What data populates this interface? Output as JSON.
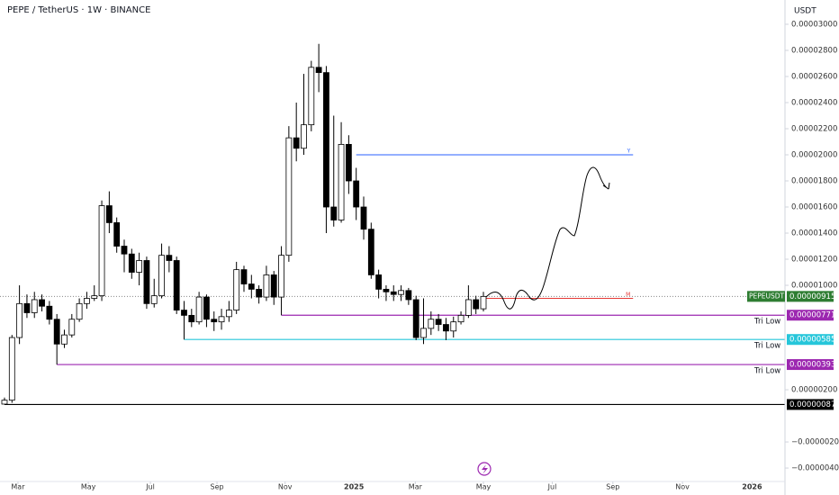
{
  "chart_data": {
    "type": "candlestick",
    "title": "PEPE / TetherUS · 1W · BINANCE",
    "currency": "USDT",
    "up_color": "#ffffff",
    "down_color": "#000000",
    "open": [
      9e-07,
      1.2e-06,
      6e-06,
      8.6e-06,
      7.9e-06,
      8.9e-06,
      8.4e-06,
      7.4e-06,
      5.5e-06,
      6.2e-06,
      7.4e-06,
      8.6e-06,
      9e-06,
      9.2e-06,
      1.61e-05,
      1.48e-05,
      1.3e-05,
      1.24e-05,
      1.1e-05,
      1.19e-05,
      8.6e-06,
      9.2e-06,
      1.23e-05,
      1.19e-05,
      8.1e-06,
      7.7e-06,
      7.2e-06,
      9.1e-06,
      7.4e-06,
      7.2e-06,
      7.6e-06,
      8.1e-06,
      1.12e-05,
      1.01e-05,
      9.7e-06,
      9.1e-06,
      1.08e-05,
      9.1e-06,
      1.23e-05,
      2.13e-05,
      2.05e-05,
      2.23e-05,
      2.67e-05,
      2.63e-05,
      1.6e-05,
      1.5e-05,
      2.08e-05,
      1.8e-05,
      1.6e-05,
      1.43e-05,
      1.08e-05,
      9.7e-06,
      9.5e-06,
      9.3e-06,
      9.6e-06,
      8.9e-06,
      6e-06,
      6.7e-06,
      7.4e-06,
      7e-06,
      6.5e-06,
      7.2e-06,
      7.7e-06,
      8.9e-06,
      8.2e-06
    ],
    "high": [
      1.4e-06,
      6.2e-06,
      1e-05,
      9.3e-06,
      9.5e-06,
      9.3e-06,
      8.8e-06,
      7.8e-06,
      6.6e-06,
      7.8e-06,
      9e-06,
      9.5e-06,
      1e-05,
      1.65e-05,
      1.72e-05,
      1.52e-05,
      1.35e-05,
      1.28e-05,
      1.25e-05,
      1.22e-05,
      1.05e-05,
      1.32e-05,
      1.3e-05,
      1.22e-05,
      8.8e-06,
      8.2e-06,
      9.5e-06,
      9.3e-06,
      8e-06,
      8.2e-06,
      8.8e-06,
      1.18e-05,
      1.15e-05,
      1.08e-05,
      1e-05,
      1.15e-05,
      1.11e-05,
      1.3e-05,
      2.22e-05,
      2.4e-05,
      2.62e-05,
      2.72e-05,
      2.85e-05,
      2.68e-05,
      2.3e-05,
      2.25e-05,
      2.15e-05,
      1.9e-05,
      1.68e-05,
      1.48e-05,
      1.12e-05,
      1e-05,
      1e-05,
      1e-05,
      9.8e-06,
      9.2e-06,
      9e-06,
      8e-06,
      7.8e-06,
      7.5e-06,
      7.6e-06,
      8e-06,
      1e-05,
      9.2e-06,
      9.5e-06
    ],
    "low": [
      8.7e-07,
      1e-06,
      5.5e-06,
      7.5e-06,
      7.5e-06,
      8e-06,
      7e-06,
      3.93e-06,
      5.2e-06,
      6e-06,
      7.2e-06,
      8.2e-06,
      8.8e-06,
      8.8e-06,
      1.4e-05,
      1.25e-05,
      1.1e-05,
      1.05e-05,
      1e-05,
      8.2e-06,
      8.3e-06,
      9e-06,
      1.1e-05,
      7.8e-06,
      5.85e-06,
      6.8e-06,
      7e-06,
      6.8e-06,
      6.5e-06,
      6.6e-06,
      7.2e-06,
      7.8e-06,
      9.5e-06,
      9e-06,
      8.6e-06,
      8.8e-06,
      8.5e-06,
      7.71e-06,
      1.18e-05,
      1.95e-05,
      2e-05,
      2.18e-05,
      2.48e-05,
      1.4e-05,
      1.45e-05,
      1.48e-05,
      1.7e-05,
      1.5e-05,
      1.35e-05,
      1.05e-05,
      9e-06,
      8.8e-06,
      8.8e-06,
      8.8e-06,
      8.5e-06,
      5.8e-06,
      5.5e-06,
      6.2e-06,
      6.5e-06,
      5.8e-06,
      6e-06,
      7e-06,
      7.5e-06,
      7.8e-06,
      8e-06
    ],
    "close": [
      1.2e-06,
      6e-06,
      8.6e-06,
      7.9e-06,
      8.9e-06,
      8.4e-06,
      7.4e-06,
      5.5e-06,
      6.2e-06,
      7.4e-06,
      8.6e-06,
      9e-06,
      9.2e-06,
      1.61e-05,
      1.48e-05,
      1.3e-05,
      1.24e-05,
      1.1e-05,
      1.19e-05,
      8.6e-06,
      9.2e-06,
      1.23e-05,
      1.19e-05,
      8.1e-06,
      7.7e-06,
      7.2e-06,
      9.1e-06,
      7.4e-06,
      7.2e-06,
      7.6e-06,
      8.1e-06,
      1.12e-05,
      1.01e-05,
      9.7e-06,
      9.1e-06,
      1.08e-05,
      9.1e-06,
      1.23e-05,
      2.13e-05,
      2.05e-05,
      2.23e-05,
      2.67e-05,
      2.63e-05,
      1.6e-05,
      1.5e-05,
      2.08e-05,
      1.8e-05,
      1.6e-05,
      1.43e-05,
      1.08e-05,
      9.7e-06,
      9.5e-06,
      9.3e-06,
      9.6e-06,
      8.9e-06,
      6e-06,
      6.7e-06,
      7.4e-06,
      7e-06,
      6.5e-06,
      7.2e-06,
      7.7e-06,
      8.9e-06,
      8.2e-06,
      9.15e-06
    ],
    "xlim": [
      -0.6,
      104.3
    ],
    "xticks": [
      {
        "value": 1.8,
        "label": "Mar"
      },
      {
        "value": 11.2,
        "label": "May"
      },
      {
        "value": 19.5,
        "label": "Jul"
      },
      {
        "value": 28.4,
        "label": "Sep"
      },
      {
        "value": 37.5,
        "label": "Nov"
      },
      {
        "value": 46.7,
        "label": "2025"
      },
      {
        "value": 54.9,
        "label": "Mar"
      },
      {
        "value": 64,
        "label": "May"
      },
      {
        "value": 73.2,
        "label": "Jul"
      },
      {
        "value": 81.3,
        "label": "Sep"
      },
      {
        "value": 90.6,
        "label": "Nov"
      },
      {
        "value": 99.9,
        "label": "2026"
      }
    ],
    "ylim": [
      -5.03e-06,
      3.186e-05
    ],
    "yticks": [
      {
        "value": 3e-05,
        "label": "0.00003000"
      },
      {
        "value": 2.8e-05,
        "label": "0.00002800"
      },
      {
        "value": 2.6e-05,
        "label": "0.00002600"
      },
      {
        "value": 2.4e-05,
        "label": "0.00002400"
      },
      {
        "value": 2.2e-05,
        "label": "0.00002200"
      },
      {
        "value": 2e-05,
        "label": "0.00002000"
      },
      {
        "value": 1.8e-05,
        "label": "0.00001800"
      },
      {
        "value": 1.6e-05,
        "label": "0.00001600"
      },
      {
        "value": 1.4e-05,
        "label": "0.00001400"
      },
      {
        "value": 1.2e-05,
        "label": "0.00001200"
      },
      {
        "value": 1e-05,
        "label": "0.00001000"
      },
      {
        "value": 2e-06,
        "label": "0.00000200"
      },
      {
        "value": -2e-06,
        "label": "−0.00000200"
      },
      {
        "value": -4e-06,
        "label": "−0.00000400"
      }
    ],
    "price": {
      "name": "PEPEUSDT",
      "value": 9.15e-06,
      "label": "0.00000915",
      "color": "#2e7d32"
    },
    "levels": [
      {
        "value": 7.71e-06,
        "value_label": "0.00000771",
        "color": "#9c27b0",
        "start": 37,
        "note": "Tri Low"
      },
      {
        "value": 5.85e-06,
        "value_label": "0.00000585",
        "color": "#26c6da",
        "start": 24,
        "note": "Tri Low"
      },
      {
        "value": 3.93e-06,
        "value_label": "0.00000393",
        "color": "#9c27b0",
        "start": 7,
        "note": "Tri Low"
      },
      {
        "value": 8.7e-07,
        "value_label": "0.00000087",
        "color": "#000000",
        "start": 0
      }
    ],
    "targets": [
      {
        "value": 2e-05,
        "color": "#2962ff",
        "start": 47,
        "end": 84,
        "label": "Y"
      },
      {
        "value": 9e-06,
        "color": "#e53935",
        "start": 64,
        "end": 84,
        "label": "M"
      }
    ]
  }
}
